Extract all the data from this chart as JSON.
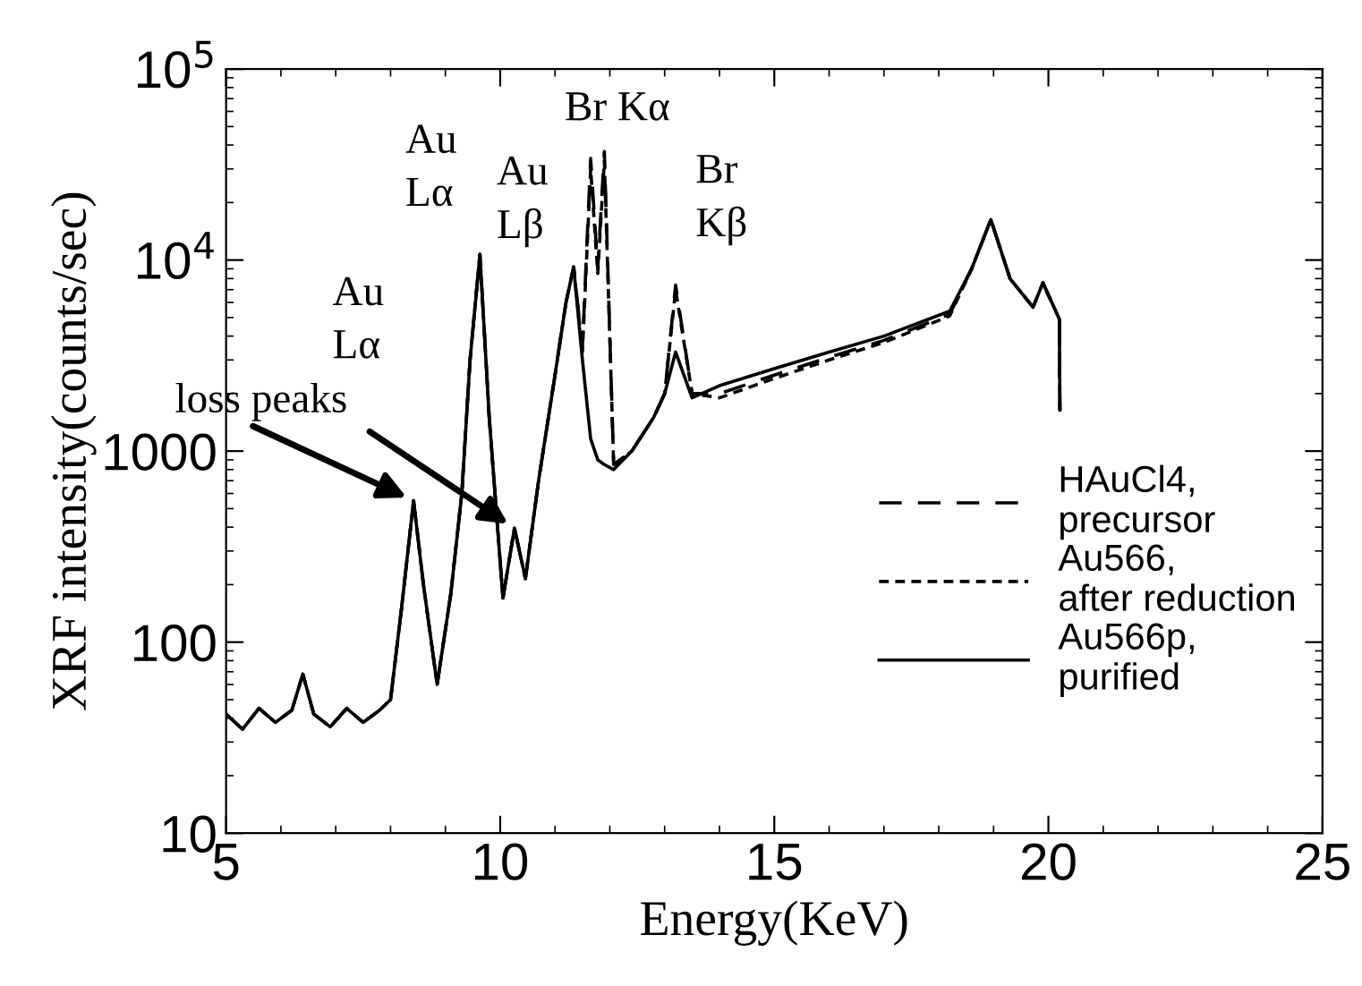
{
  "chart_data": {
    "type": "line",
    "xlabel": "Energy(KeV)",
    "ylabel": "XRF intensity(counts/sec)",
    "log": "y",
    "xlim": [
      5,
      25
    ],
    "ylim": [
      10,
      100000
    ],
    "xticks": [
      5,
      10,
      15,
      20,
      25
    ],
    "yticks": [
      {
        "value": 10,
        "label": "10"
      },
      {
        "value": 100,
        "label": "100"
      },
      {
        "value": 1000,
        "label": "1000"
      },
      {
        "value": 10000,
        "label": "10$^{4}$"
      },
      {
        "value": 100000,
        "label": "10$^{5}$"
      }
    ],
    "grid": false,
    "legend": "right",
    "marker": "none",
    "x": [
      5.0,
      5.3,
      5.6,
      5.9,
      6.2,
      6.4,
      6.6,
      6.9,
      7.2,
      7.5,
      7.8,
      8.0,
      8.2,
      8.42,
      8.6,
      8.85,
      9.1,
      9.3,
      9.45,
      9.63,
      9.8,
      10.05,
      10.26,
      10.46,
      10.7,
      11.0,
      11.2,
      11.34,
      11.5,
      11.65,
      11.78,
      11.9,
      12.07,
      12.4,
      12.8,
      13.0,
      13.2,
      13.5,
      14.0,
      15.0,
      16.0,
      17.0,
      18.2,
      18.6,
      18.95,
      19.3,
      19.72,
      19.9,
      20.2,
      20.21
    ],
    "series": [
      {
        "name": "HAuCl4,\nprecursor",
        "color": "#000000",
        "line_style": "dashed",
        "values": [
          42,
          35,
          45,
          38,
          44,
          68,
          42,
          36,
          45,
          38,
          44,
          50,
          150,
          550,
          200,
          60,
          180,
          600,
          3000,
          10700,
          1500,
          170,
          395,
          215,
          700,
          2500,
          6000,
          9200,
          3500,
          34000,
          9000,
          37000,
          850,
          1000,
          1500,
          2000,
          7400,
          2000,
          2000,
          2500,
          3100,
          3800,
          5200,
          9000,
          16300,
          8000,
          5660,
          7600,
          4900,
          1640
        ]
      },
      {
        "name": "Au566,\nafter reduction",
        "color": "#000000",
        "line_style": "dotted",
        "values": [
          42,
          35,
          45,
          38,
          44,
          68,
          42,
          36,
          45,
          38,
          44,
          50,
          150,
          550,
          200,
          60,
          180,
          600,
          3000,
          10700,
          1500,
          170,
          395,
          215,
          700,
          2500,
          6000,
          9200,
          3300,
          30000,
          8500,
          33000,
          850,
          1000,
          1500,
          2000,
          7000,
          2000,
          1900,
          2400,
          3000,
          3700,
          5100,
          9000,
          16300,
          8000,
          5660,
          7600,
          4900,
          1640
        ]
      },
      {
        "name": "Au566p,\npurified",
        "color": "#000000",
        "line_style": "solid",
        "values": [
          42,
          35,
          45,
          38,
          44,
          68,
          42,
          36,
          45,
          38,
          44,
          50,
          150,
          550,
          200,
          60,
          180,
          600,
          3000,
          10700,
          1500,
          170,
          395,
          215,
          700,
          2500,
          6000,
          9200,
          3000,
          1160,
          900,
          850,
          800,
          1000,
          1500,
          2000,
          3300,
          1900,
          2200,
          2700,
          3300,
          4000,
          5400,
          9000,
          16300,
          8000,
          5660,
          7600,
          4900,
          1640
        ]
      }
    ],
    "annotations": [
      "Au\nLα",
      {
        "text": "Au\nLα",
        "x": 9.63,
        "y": 10700
      },
      {
        "text": "Au\nLβ",
        "x": 11.34,
        "y": 9200
      },
      {
        "text": "Br Kα",
        "x": 11.9,
        "y": 37000
      },
      {
        "text": "Br\nKβ",
        "x": 13.2,
        "y": 7400
      },
      {
        "text": "loss peaks",
        "x": 8.42,
        "y": 550
      }
    ]
  }
}
